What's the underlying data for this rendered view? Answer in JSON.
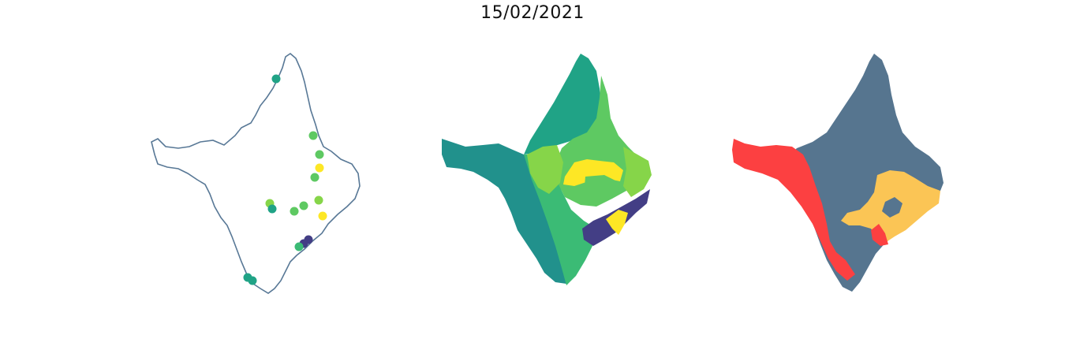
{
  "title": "15/02/2021",
  "colors": {
    "outline": "#587896",
    "teal": "#20a386",
    "teal_dark": "#21918c",
    "green": "#3bbb75",
    "green_light": "#5ec962",
    "lime": "#86d549",
    "yellow": "#fde725",
    "indigo": "#433e85",
    "slate": "#56758f",
    "red": "#fc4041",
    "gold": "#fbc555"
  },
  "panels": [
    {
      "name": "points-map",
      "style": "outline with point markers"
    },
    {
      "name": "choropleth-viridis",
      "style": "filled regions, viridis colors"
    },
    {
      "name": "choropleth-categorical",
      "style": "filled regions, three categories"
    }
  ]
}
